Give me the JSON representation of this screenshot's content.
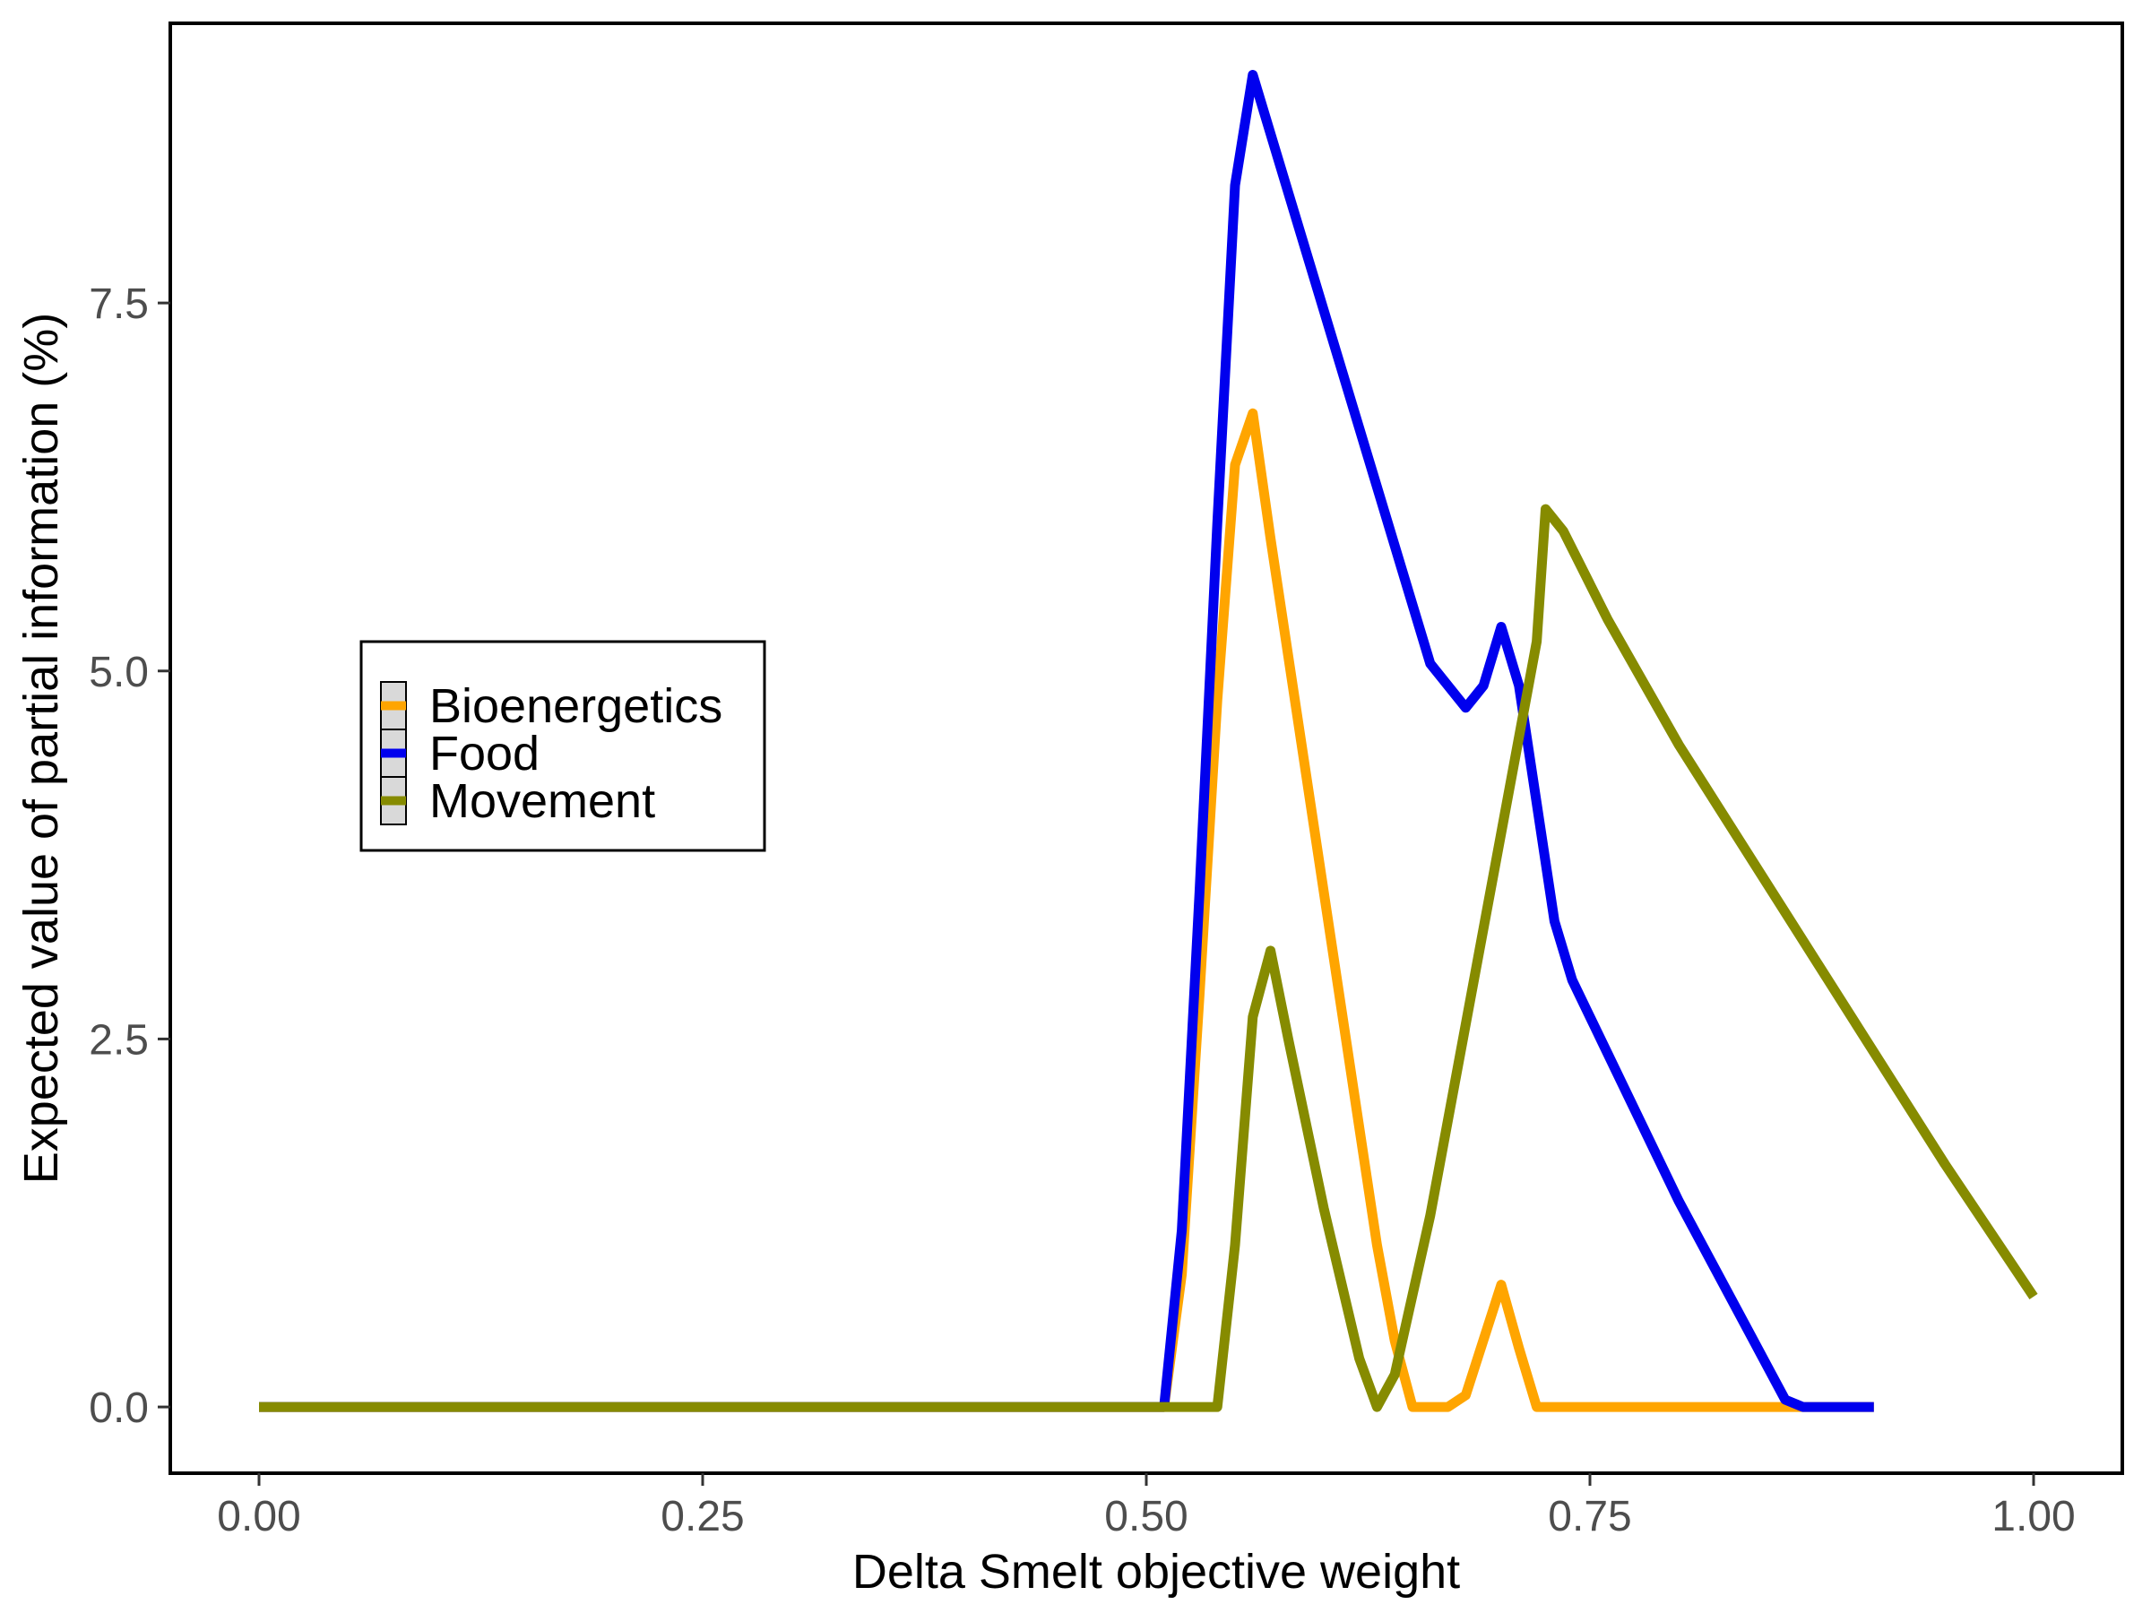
{
  "chart_data": {
    "type": "line",
    "title": "",
    "xlabel": "Delta Smelt objective weight",
    "ylabel": "Expected value of partial information (%)",
    "xlim": [
      -0.05,
      1.05
    ],
    "ylim": [
      -0.45,
      9.4
    ],
    "x_ticks": [
      0.0,
      0.25,
      0.5,
      0.75,
      1.0
    ],
    "x_tick_labels": [
      "0.00",
      "0.25",
      "0.50",
      "0.75",
      "1.00"
    ],
    "y_ticks": [
      0.0,
      2.5,
      5.0,
      7.5
    ],
    "y_tick_labels": [
      "0.0",
      "2.5",
      "5.0",
      "7.5"
    ],
    "grid": false,
    "legend_position": "left-center",
    "series": [
      {
        "name": "Bioenergetics",
        "color": "#FFA500",
        "points": [
          [
            0.0,
            0
          ],
          [
            0.51,
            0
          ],
          [
            0.52,
            0.9
          ],
          [
            0.53,
            2.8
          ],
          [
            0.54,
            4.8
          ],
          [
            0.55,
            6.4
          ],
          [
            0.56,
            6.75
          ],
          [
            0.57,
            5.9
          ],
          [
            0.58,
            5.1
          ],
          [
            0.59,
            4.3
          ],
          [
            0.6,
            3.5
          ],
          [
            0.61,
            2.7
          ],
          [
            0.62,
            1.9
          ],
          [
            0.63,
            1.1
          ],
          [
            0.64,
            0.45
          ],
          [
            0.65,
            0
          ],
          [
            0.67,
            0
          ],
          [
            0.68,
            0.08
          ],
          [
            0.7,
            0.83
          ],
          [
            0.71,
            0.4
          ],
          [
            0.72,
            0
          ],
          [
            0.91,
            0
          ]
        ]
      },
      {
        "name": "Food",
        "color": "#0000EE",
        "points": [
          [
            0.0,
            0
          ],
          [
            0.51,
            0
          ],
          [
            0.52,
            1.2
          ],
          [
            0.53,
            3.5
          ],
          [
            0.54,
            6.0
          ],
          [
            0.55,
            8.3
          ],
          [
            0.56,
            9.05
          ],
          [
            0.58,
            8.25
          ],
          [
            0.6,
            7.45
          ],
          [
            0.62,
            6.65
          ],
          [
            0.64,
            5.85
          ],
          [
            0.66,
            5.05
          ],
          [
            0.68,
            4.75
          ],
          [
            0.69,
            4.9
          ],
          [
            0.7,
            5.3
          ],
          [
            0.71,
            4.9
          ],
          [
            0.72,
            4.1
          ],
          [
            0.73,
            3.3
          ],
          [
            0.74,
            2.9
          ],
          [
            0.76,
            2.4
          ],
          [
            0.78,
            1.9
          ],
          [
            0.8,
            1.4
          ],
          [
            0.82,
            0.95
          ],
          [
            0.84,
            0.5
          ],
          [
            0.86,
            0.05
          ],
          [
            0.87,
            0
          ],
          [
            0.91,
            0
          ]
        ]
      },
      {
        "name": "Movement",
        "color": "#868B00",
        "points": [
          [
            0.0,
            0
          ],
          [
            0.54,
            0
          ],
          [
            0.55,
            1.1
          ],
          [
            0.56,
            2.65
          ],
          [
            0.57,
            3.1
          ],
          [
            0.58,
            2.5
          ],
          [
            0.6,
            1.35
          ],
          [
            0.62,
            0.33
          ],
          [
            0.63,
            0
          ],
          [
            0.64,
            0.22
          ],
          [
            0.66,
            1.3
          ],
          [
            0.68,
            2.6
          ],
          [
            0.7,
            3.9
          ],
          [
            0.72,
            5.2
          ],
          [
            0.725,
            6.1
          ],
          [
            0.735,
            5.95
          ],
          [
            0.76,
            5.35
          ],
          [
            0.8,
            4.5
          ],
          [
            0.85,
            3.55
          ],
          [
            0.9,
            2.6
          ],
          [
            0.95,
            1.65
          ],
          [
            1.0,
            0.75
          ]
        ]
      }
    ]
  }
}
